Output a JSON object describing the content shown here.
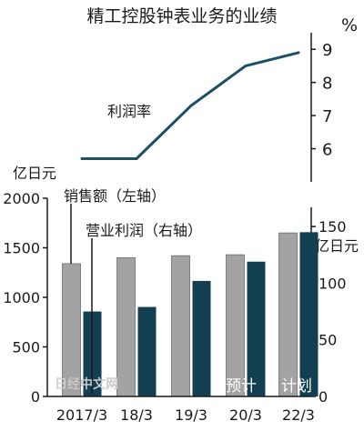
{
  "chart_data": {
    "type": "bar",
    "title": "精工控股钟表业务的业绩",
    "categories": [
      "2017/3",
      "18/3",
      "19/3",
      "20/3",
      "22/3"
    ],
    "series": [
      {
        "name": "销售额（左轴）",
        "axis": "left",
        "values": [
          1340,
          1400,
          1420,
          1430,
          1650
        ],
        "color": "#a3a3a3"
      },
      {
        "name": "营业利润（右轴）",
        "axis": "right",
        "values": [
          75,
          79,
          102,
          119,
          145
        ],
        "color": "#123f52"
      }
    ],
    "line": {
      "name": "利润率",
      "unit": "%",
      "values": [
        5.7,
        5.7,
        7.3,
        8.5,
        8.9
      ],
      "ticks": [
        "6",
        "7",
        "8",
        "9"
      ],
      "ylim": [
        5,
        9.5
      ],
      "color": "#1e4e63"
    },
    "left_axis": {
      "unit": "亿日元",
      "ticks": [
        "0",
        "500",
        "1000",
        "1500",
        "2000"
      ],
      "ylim": [
        0,
        2000
      ]
    },
    "right_axis": {
      "unit": "亿日元",
      "ticks": [
        "0",
        "50",
        "100",
        "150"
      ],
      "ylim": [
        0,
        175
      ]
    },
    "annotations": {
      "forecast": "预计",
      "plan": "计划"
    },
    "watermark": "日经中文网"
  }
}
